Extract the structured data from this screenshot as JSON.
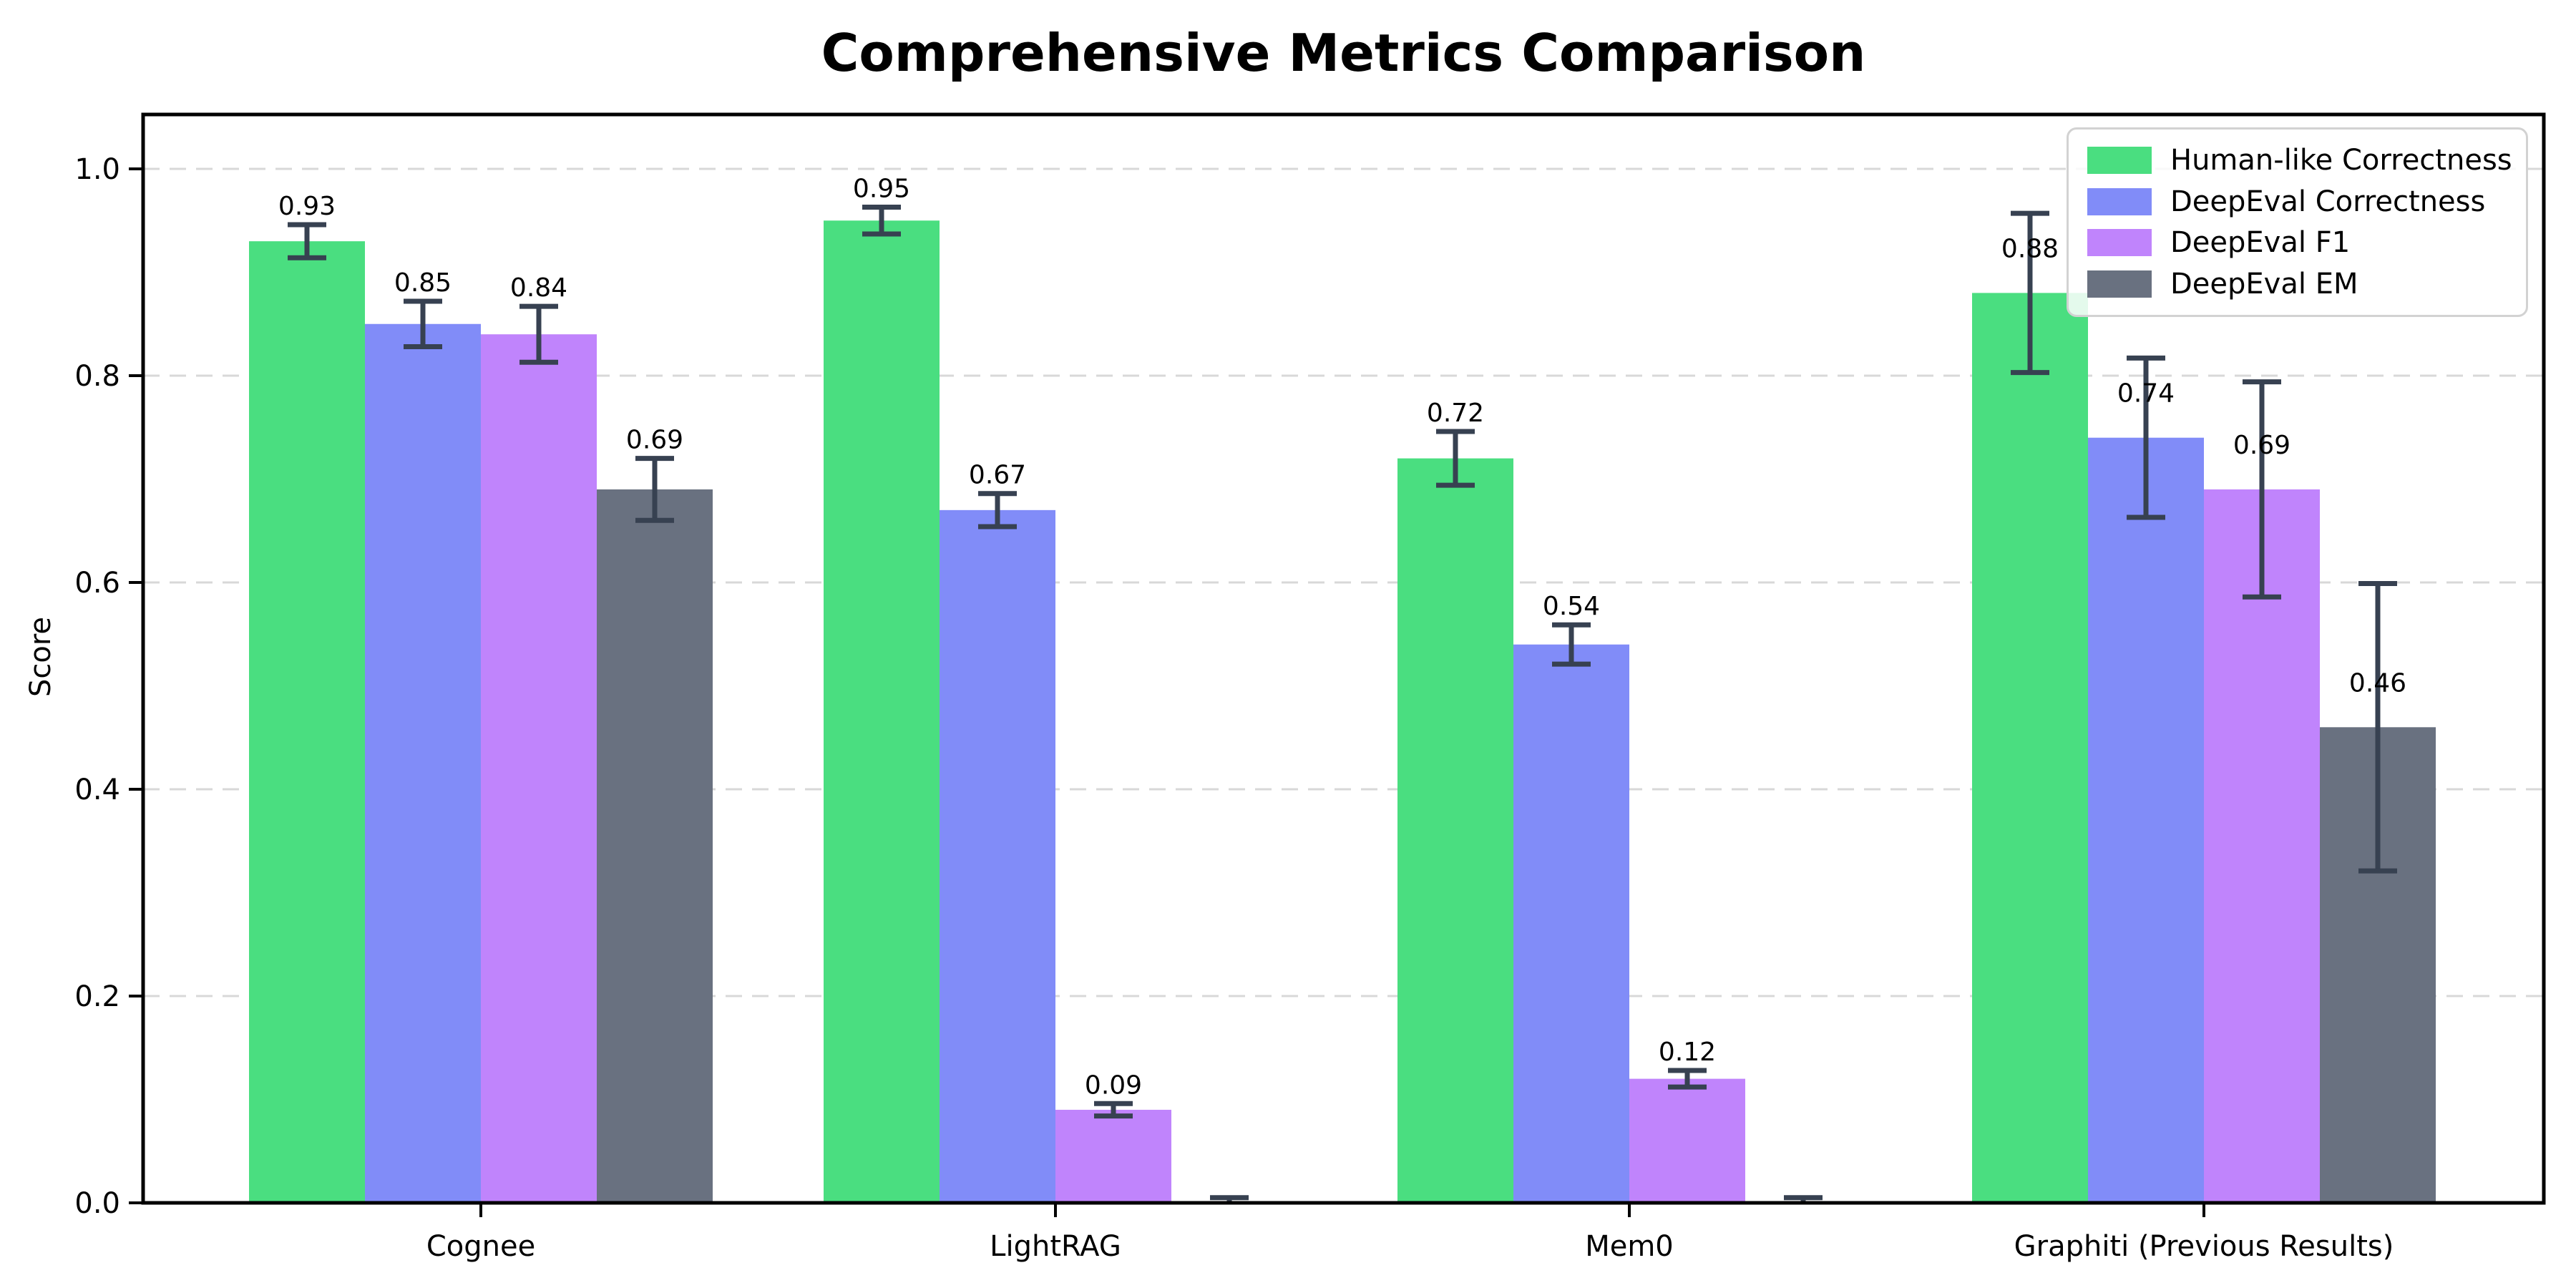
{
  "chart_data": {
    "type": "bar",
    "title": "Comprehensive Metrics Comparison",
    "xlabel": "",
    "ylabel": "Score",
    "categories": [
      "Cognee",
      "LightRAG",
      "Mem0",
      "Graphiti (Previous Results)"
    ],
    "series": [
      {
        "name": "Human-like Correctness",
        "color": "#4ade80",
        "values": [
          0.93,
          0.95,
          0.72,
          0.88
        ],
        "errors": [
          0.016,
          0.013,
          0.026,
          0.077
        ],
        "labels": [
          "0.93",
          "0.95",
          "0.72",
          "0.88"
        ]
      },
      {
        "name": "DeepEval Correctness",
        "color": "#818cf8",
        "values": [
          0.85,
          0.67,
          0.54,
          0.74
        ],
        "errors": [
          0.022,
          0.016,
          0.019,
          0.077
        ],
        "labels": [
          "0.85",
          "0.67",
          "0.54",
          "0.74"
        ]
      },
      {
        "name": "DeepEval F1",
        "color": "#c084fc",
        "values": [
          0.84,
          0.09,
          0.12,
          0.69
        ],
        "errors": [
          0.027,
          0.006,
          0.008,
          0.104
        ],
        "labels": [
          "0.84",
          "0.09",
          "0.12",
          "0.69"
        ]
      },
      {
        "name": "DeepEval EM",
        "color": "#697180",
        "values": [
          0.69,
          0.001,
          0.001,
          0.46
        ],
        "errors": [
          0.03,
          0.004,
          0.004,
          0.139
        ],
        "labels": [
          "0.69",
          null,
          null,
          "0.46"
        ]
      }
    ],
    "ylim": [
      0,
      1.05
    ],
    "yticks": [
      0.0,
      0.2,
      0.4,
      0.6,
      0.8,
      1.0
    ],
    "grid": "horizontal-dashed",
    "legend_position": "upper-right",
    "colors": {
      "error_bar": "#374151",
      "axis": "#000000",
      "gridline": "#d8d8d8",
      "text": "#000000"
    }
  }
}
